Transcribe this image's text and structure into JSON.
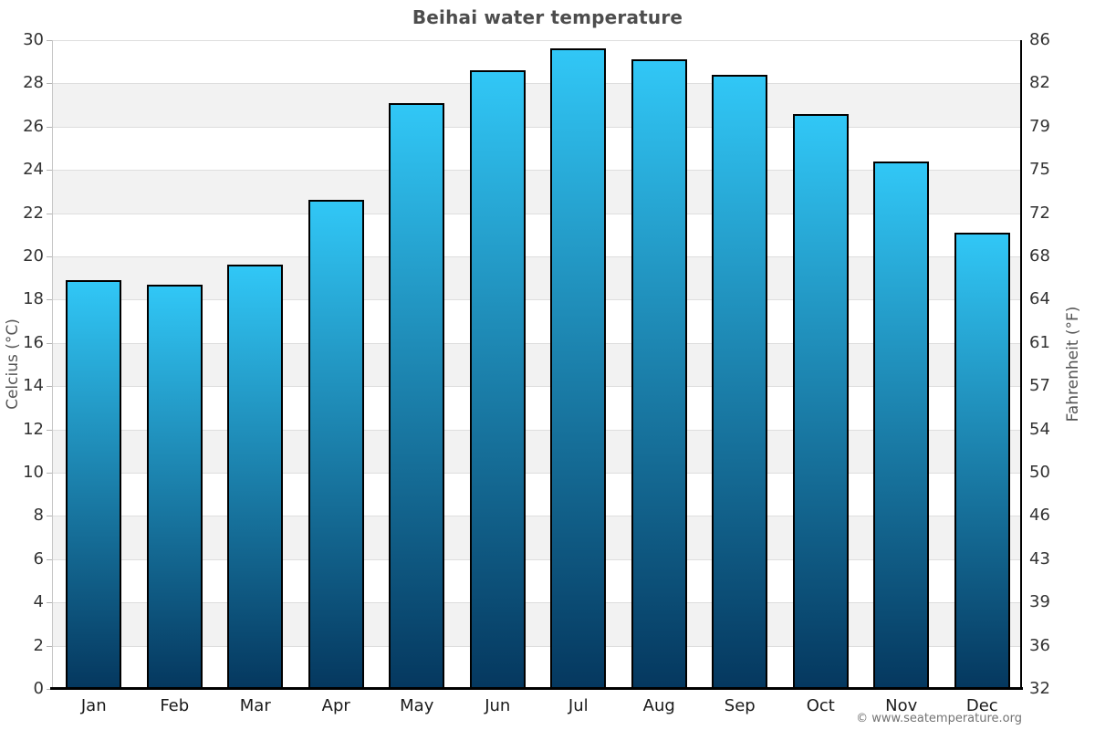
{
  "page": {
    "title": "Beihai water temperature",
    "footer": "© www.seatemperature.org"
  },
  "chart_data": {
    "type": "bar",
    "title": "Beihai water temperature",
    "xlabel": "",
    "ylabel_left": "Celcius (°C)",
    "ylabel_right": "Fahrenheit (°F)",
    "categories": [
      "Jan",
      "Feb",
      "Mar",
      "Apr",
      "May",
      "Jun",
      "Jul",
      "Aug",
      "Sep",
      "Oct",
      "Nov",
      "Dec"
    ],
    "series": [
      {
        "name": "Water temperature (°C)",
        "values": [
          18.9,
          18.7,
          19.6,
          22.6,
          27.1,
          28.6,
          29.6,
          29.1,
          28.4,
          26.6,
          24.4,
          21.1
        ]
      }
    ],
    "ylim_celsius": [
      0,
      30
    ],
    "celsius_ticks": [
      0,
      2,
      4,
      6,
      8,
      10,
      12,
      14,
      16,
      18,
      20,
      22,
      24,
      26,
      28,
      30
    ],
    "fahrenheit_tick_labels": [
      "32",
      "36",
      "39",
      "43",
      "46",
      "50",
      "54",
      "57",
      "61",
      "64",
      "68",
      "72",
      "75",
      "79",
      "82",
      "86"
    ],
    "gray_bands": [
      [
        2,
        4
      ],
      [
        6,
        8
      ],
      [
        10,
        12
      ],
      [
        14,
        16
      ],
      [
        18,
        20
      ],
      [
        22,
        24
      ],
      [
        26,
        28
      ]
    ],
    "grid": "on",
    "legend": "none",
    "colors": {
      "bar_gradient_top": "#31c7f6",
      "bar_gradient_bottom": "#05385f",
      "bar_border": "#000000",
      "band": "#f2f2f2",
      "gridline": "#dedede",
      "title_text": "#4d4d4d",
      "tick_text": "#333333",
      "footer_text": "#737373"
    }
  }
}
